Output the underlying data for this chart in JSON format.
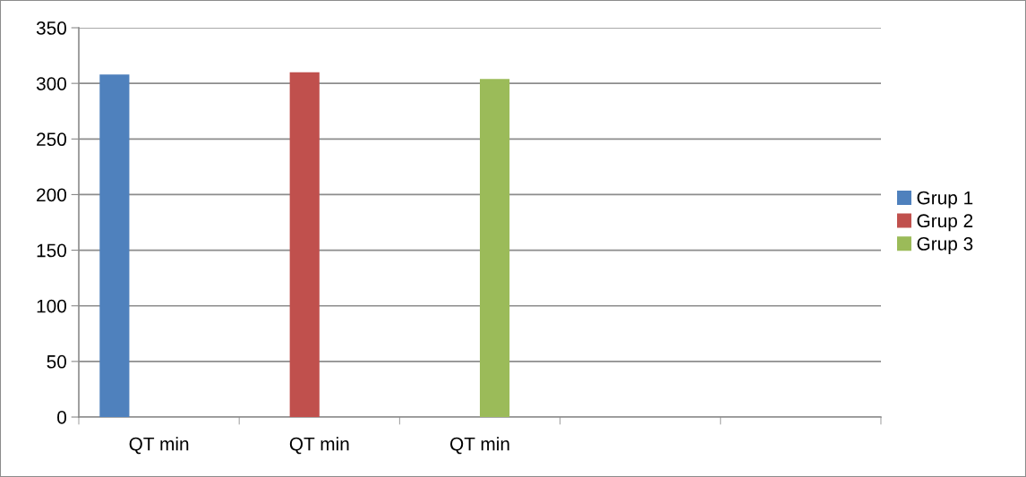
{
  "chart_data": {
    "type": "bar",
    "categories": [
      "QT min",
      "QT min",
      "QT min",
      null,
      null
    ],
    "series": [
      {
        "name": "Grup 1",
        "color": "#4f81bd",
        "values": [
          308,
          null,
          null,
          null,
          null
        ]
      },
      {
        "name": "Grup 2",
        "color": "#c0504d",
        "values": [
          null,
          310,
          null,
          null,
          null
        ]
      },
      {
        "name": "Grup 3",
        "color": "#9bbb59",
        "values": [
          null,
          null,
          304,
          null,
          null
        ]
      },
      {
        "values": [
          null,
          null,
          null,
          null,
          null
        ]
      }
    ],
    "ylim": [
      0,
      350
    ],
    "yticks": [
      0,
      50,
      100,
      150,
      200,
      250,
      300,
      350
    ],
    "grid": "y",
    "legend": "right"
  }
}
